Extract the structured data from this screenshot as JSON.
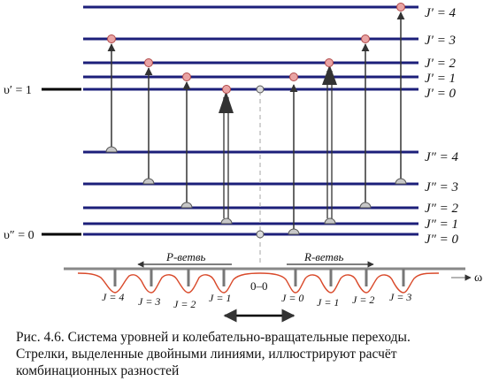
{
  "upper_levels": [
    "J′ = 0",
    "J′ = 1",
    "J′ = 2",
    "J′ = 3",
    "J′ = 4"
  ],
  "lower_levels": [
    "J″ = 0",
    "J″ = 1",
    "J″ = 2",
    "J″ = 3",
    "J″ = 4"
  ],
  "v_upper": "υ′ = 1",
  "v_lower": "υ″ = 0",
  "p_branch": "P-ветвь",
  "r_branch": "R-ветвь",
  "center": "0–0",
  "omega": "ω",
  "p_ticks": [
    "J = 4",
    "J = 3",
    "J = 2",
    "J = 1"
  ],
  "r_ticks": [
    "J = 0",
    "J = 1",
    "J = 2",
    "J = 3"
  ],
  "colors": {
    "level": "#1c1f7a",
    "arrow": "#333333",
    "marker_fill": "#e9a4a4",
    "spectrum": "#d94a2b",
    "axis": "#888888"
  },
  "caption": [
    "Рис. 4.6. Система уровней и колебательно-вращательные переходы.",
    "Стрелки, выделенные двойными линиями, иллюстрируют расчёт",
    "комбинационных разностей"
  ]
}
